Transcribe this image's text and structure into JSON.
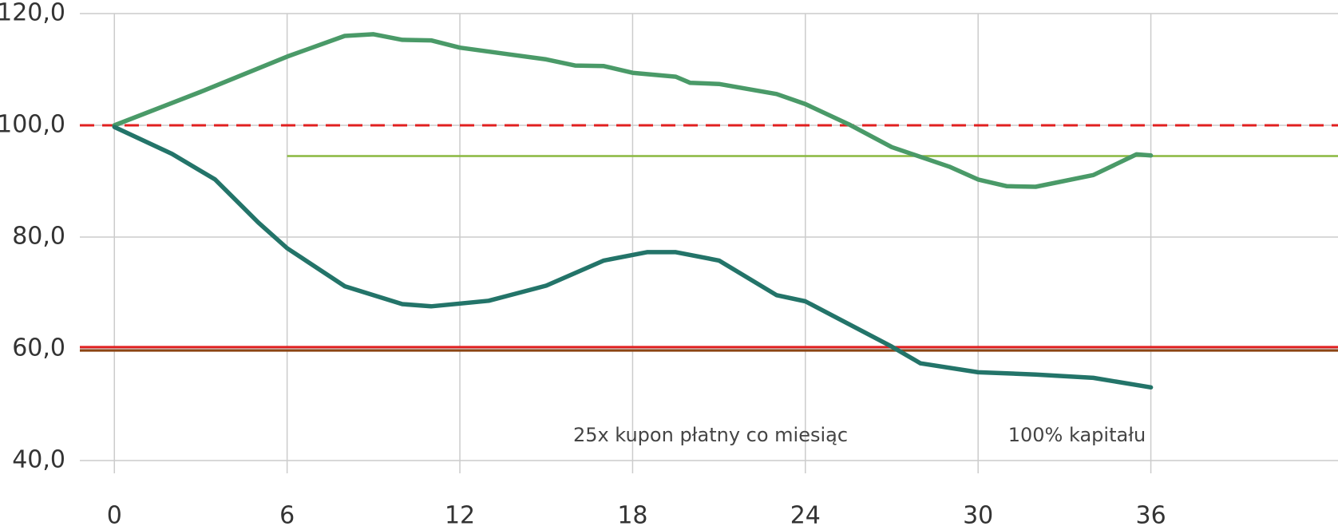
{
  "chart_data": {
    "type": "line",
    "annotations": [
      "25x kupon płatny co miesiąc",
      "100% kapitału"
    ],
    "xlim": [
      -1.2,
      42.5
    ],
    "xticks": [
      0,
      6,
      12,
      18,
      24,
      30,
      36
    ],
    "ylim": [
      40,
      120
    ],
    "yticks": [
      {
        "value": 40,
        "label": "40,0"
      },
      {
        "value": 60,
        "label": "60,0"
      },
      {
        "value": 80,
        "label": "80,0"
      },
      {
        "value": 100,
        "label": "100,0"
      },
      {
        "value": 120,
        "label": "120,0"
      }
    ],
    "grid": true,
    "hlines": [
      {
        "value": 100,
        "color": "#e02020",
        "dashed": true
      },
      {
        "value": 94.5,
        "from": 6,
        "color": "#8ab840"
      },
      {
        "value": 60.3,
        "color": "#e02020"
      },
      {
        "value": 59.7,
        "color": "#8b4513"
      }
    ],
    "series": [
      {
        "color": "#4a9a68",
        "x": [
          0,
          3,
          6,
          8,
          9,
          10,
          11,
          12,
          15,
          16,
          17,
          18,
          19.5,
          20,
          21,
          23,
          24,
          25.5,
          27,
          29,
          30,
          31,
          32,
          34,
          35.5,
          36
        ],
        "values": [
          100,
          106,
          112.3,
          116,
          116.3,
          115.3,
          115.2,
          113.9,
          111.8,
          110.7,
          110.6,
          109.4,
          108.7,
          107.6,
          107.4,
          105.6,
          103.8,
          100.2,
          96.1,
          92.6,
          90.3,
          89.1,
          89,
          91.1,
          94.8,
          94.6
        ]
      },
      {
        "color": "#237469",
        "x": [
          0,
          2,
          3.5,
          5,
          6,
          8,
          10,
          11,
          13,
          15,
          17,
          18.5,
          19.5,
          21,
          23,
          24,
          25,
          27,
          28,
          30,
          32,
          34,
          36
        ],
        "values": [
          99.7,
          94.9,
          90.3,
          82.6,
          78,
          71.2,
          68,
          67.6,
          68.6,
          71.3,
          75.8,
          77.3,
          77.3,
          75.8,
          69.6,
          68.5,
          65.8,
          60.4,
          57.4,
          55.8,
          55.4,
          54.8,
          53.1
        ]
      }
    ]
  }
}
